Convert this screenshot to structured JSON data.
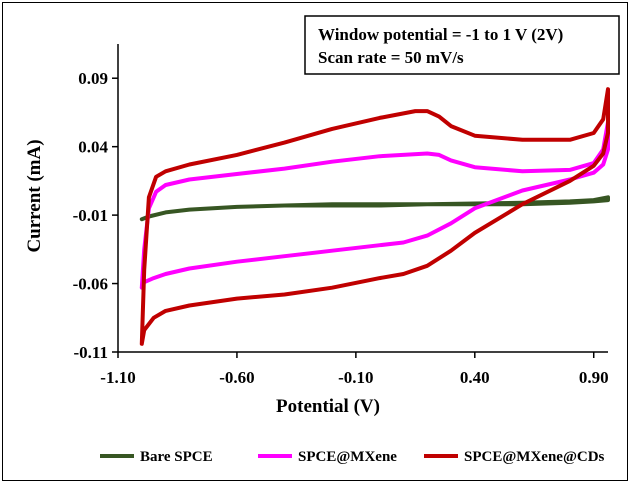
{
  "chart_data": {
    "type": "line",
    "title": "",
    "xlabel": "Potential (V)",
    "ylabel": "Current (mA)",
    "xlim": [
      -1.1,
      0.96
    ],
    "ylim": [
      -0.11,
      0.115
    ],
    "x_ticks": [
      "-1.10",
      "-0.60",
      "-0.10",
      "0.40",
      "0.90"
    ],
    "x_tick_values": [
      -1.1,
      -0.6,
      -0.1,
      0.4,
      0.9
    ],
    "y_ticks": [
      "0.09",
      "0.04",
      "-0.01",
      "-0.06",
      "-0.11"
    ],
    "y_tick_values": [
      0.09,
      0.04,
      -0.01,
      -0.06,
      -0.11
    ],
    "grid": false,
    "legend_position": "bottom",
    "annotation": [
      "Window potential = -1 to 1 V (2V)",
      "Scan rate = 50 mV/s"
    ],
    "series": [
      {
        "name": "Bare SPCE",
        "color": "#375623",
        "x": [
          -1.0,
          -0.97,
          -0.9,
          -0.8,
          -0.6,
          -0.4,
          -0.2,
          0.0,
          0.2,
          0.4,
          0.6,
          0.8,
          0.9,
          0.96,
          0.96,
          0.9,
          0.8,
          0.6,
          0.4,
          0.2,
          0.0,
          -0.2,
          -0.4,
          -0.6,
          -0.8,
          -0.9,
          -0.97,
          -1.0
        ],
        "y": [
          -0.013,
          -0.011,
          -0.008,
          -0.006,
          -0.004,
          -0.003,
          -0.002,
          -0.002,
          -0.002,
          -0.0015,
          -0.001,
          0.0,
          0.001,
          0.003,
          0.001,
          0.0,
          -0.001,
          -0.002,
          -0.002,
          -0.002,
          -0.003,
          -0.003,
          -0.003,
          -0.004,
          -0.006,
          -0.008,
          -0.011,
          -0.013
        ]
      },
      {
        "name": "SPCE@MXene",
        "color": "#FF00FF",
        "x": [
          -1.0,
          -0.99,
          -0.97,
          -0.94,
          -0.9,
          -0.8,
          -0.6,
          -0.4,
          -0.2,
          0.0,
          0.2,
          0.25,
          0.3,
          0.4,
          0.6,
          0.8,
          0.9,
          0.94,
          0.96,
          0.96,
          0.94,
          0.9,
          0.8,
          0.6,
          0.4,
          0.3,
          0.2,
          0.1,
          0.0,
          -0.2,
          -0.4,
          -0.6,
          -0.8,
          -0.9,
          -0.95,
          -0.99,
          -1.0
        ],
        "y": [
          -0.063,
          -0.035,
          -0.005,
          0.007,
          0.012,
          0.016,
          0.02,
          0.024,
          0.029,
          0.033,
          0.035,
          0.034,
          0.03,
          0.025,
          0.022,
          0.023,
          0.028,
          0.038,
          0.058,
          0.038,
          0.027,
          0.021,
          0.016,
          0.008,
          -0.005,
          -0.016,
          -0.025,
          -0.03,
          -0.032,
          -0.036,
          -0.04,
          -0.044,
          -0.049,
          -0.053,
          -0.056,
          -0.059,
          -0.063
        ]
      },
      {
        "name": "SPCE@MXene@CDs",
        "color": "#C00000",
        "x": [
          -1.0,
          -0.99,
          -0.97,
          -0.94,
          -0.9,
          -0.8,
          -0.6,
          -0.4,
          -0.2,
          0.0,
          0.15,
          0.2,
          0.25,
          0.3,
          0.4,
          0.6,
          0.8,
          0.9,
          0.94,
          0.96,
          0.96,
          0.94,
          0.9,
          0.8,
          0.6,
          0.4,
          0.3,
          0.2,
          0.1,
          0.0,
          -0.2,
          -0.4,
          -0.6,
          -0.8,
          -0.9,
          -0.95,
          -0.99,
          -1.0
        ],
        "y": [
          -0.104,
          -0.05,
          0.003,
          0.018,
          0.022,
          0.027,
          0.034,
          0.043,
          0.053,
          0.061,
          0.066,
          0.066,
          0.062,
          0.055,
          0.048,
          0.045,
          0.045,
          0.05,
          0.06,
          0.082,
          0.05,
          0.035,
          0.026,
          0.015,
          -0.002,
          -0.023,
          -0.036,
          -0.047,
          -0.053,
          -0.056,
          -0.063,
          -0.068,
          -0.071,
          -0.076,
          -0.08,
          -0.085,
          -0.094,
          -0.104
        ]
      }
    ]
  }
}
